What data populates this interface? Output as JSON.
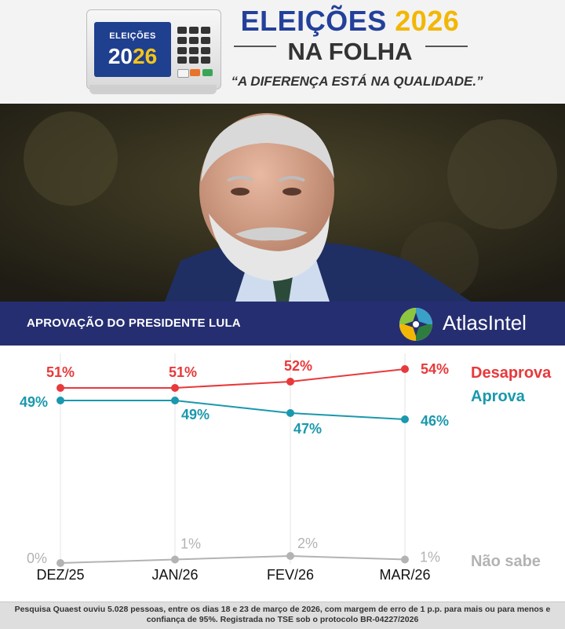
{
  "header": {
    "urn_label": "ELEIÇÕES",
    "urn_year_a": "20",
    "urn_year_b": "26",
    "title_a": "ELEIÇÕES",
    "title_b": "2026",
    "subtitle": "NA FOLHA",
    "slogan": "“A DIFERENÇA ESTÁ NA QUALIDADE.”"
  },
  "banner": {
    "title": "APROVAÇÃO DO PRESIDENTE LULA",
    "brand": "AtlasIntel"
  },
  "colors": {
    "desaprova": "#e8393b",
    "aprova": "#1a98ad",
    "nao_sabe": "#b3b3b3",
    "banner": "#262e72",
    "brand_blue": "#23409a",
    "brand_yellow": "#f2b705"
  },
  "chart_data": {
    "type": "line",
    "title": "APROVAÇÃO DO PRESIDENTE LULA",
    "categories": [
      "DEZ/25",
      "JAN/26",
      "FEV/26",
      "MAR/26"
    ],
    "series": [
      {
        "name": "Desaprova",
        "values": [
          51,
          51,
          52,
          54
        ],
        "labels": [
          "51%",
          "51%",
          "52%",
          "54%"
        ]
      },
      {
        "name": "Aprova",
        "values": [
          49,
          49,
          47,
          46
        ],
        "labels": [
          "49%",
          "49%",
          "47%",
          "46%"
        ]
      },
      {
        "name": "Não sabe",
        "values": [
          0,
          1,
          2,
          1
        ],
        "labels": [
          "0%",
          "1%",
          "2%",
          "1%"
        ]
      }
    ],
    "grid": "vertical lines at each month"
  },
  "footer": {
    "note": "Pesquisa Quaest ouviu 5.028 pessoas, entre os dias 18 e 23 de março de 2026, com margem de erro de 1 p.p. para mais ou para menos e confiança de 95%. Registrada no TSE sob o protocolo BR-04227/2026"
  }
}
